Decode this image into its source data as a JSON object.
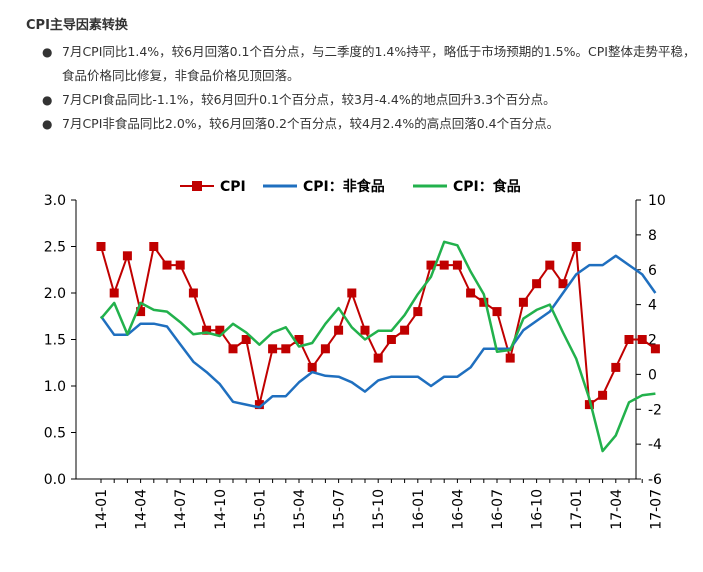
{
  "section_title": "CPI主导因素转换",
  "bullets": [
    "7月CPI同比1.4%，较6月回落0.1个百分点，与二季度的1.4%持平，略低于市场预期的1.5%。CPI整体走势平稳，食品价格同比修复，非食品价格见顶回落。",
    "7月CPI食品同比-1.1%，较6月回升0.1个百分点，较3月-4.4%的地点回升3.3个百分点。",
    "7月CPI非食品同比2.0%，较6月回落0.2个百分点，较4月2.4%的高点回落0.4个百分点。"
  ],
  "chart_data": {
    "type": "line",
    "x": [
      "14-01",
      "14-02",
      "14-03",
      "14-04",
      "14-05",
      "14-06",
      "14-07",
      "14-08",
      "14-09",
      "14-10",
      "14-11",
      "14-12",
      "15-01",
      "15-02",
      "15-03",
      "15-04",
      "15-05",
      "15-06",
      "15-07",
      "15-08",
      "15-09",
      "15-10",
      "15-11",
      "15-12",
      "16-01",
      "16-02",
      "16-03",
      "16-04",
      "16-05",
      "16-06",
      "16-07",
      "16-08",
      "16-09",
      "16-10",
      "16-11",
      "16-12",
      "17-01",
      "17-02",
      "17-03",
      "17-04",
      "17-05",
      "17-06",
      "17-07"
    ],
    "x_tick_labels": [
      "14-01",
      "14-04",
      "14-07",
      "14-10",
      "15-01",
      "15-04",
      "15-07",
      "15-10",
      "16-01",
      "16-04",
      "16-07",
      "16-10",
      "17-01",
      "17-04",
      "17-07"
    ],
    "left_axis": {
      "ylim": [
        0.0,
        3.0
      ],
      "ticks": [
        "0.0",
        "0.5",
        "1.0",
        "1.5",
        "2.0",
        "2.5",
        "3.0"
      ]
    },
    "right_axis": {
      "ylim": [
        -6,
        10
      ],
      "ticks": [
        "-6",
        "-4",
        "-2",
        "0",
        "2",
        "4",
        "6",
        "8",
        "10"
      ]
    },
    "legend_position": "top",
    "series": [
      {
        "name": "CPI",
        "axis": "left",
        "color": "#c00000",
        "marker": "square",
        "values": [
          2.5,
          2.0,
          2.4,
          1.8,
          2.5,
          2.3,
          2.3,
          2.0,
          1.6,
          1.6,
          1.4,
          1.5,
          0.8,
          1.4,
          1.4,
          1.5,
          1.2,
          1.4,
          1.6,
          2.0,
          1.6,
          1.3,
          1.5,
          1.6,
          1.8,
          2.3,
          2.3,
          2.3,
          2.0,
          1.9,
          1.8,
          1.3,
          1.9,
          2.1,
          2.3,
          2.1,
          2.5,
          0.8,
          0.9,
          1.2,
          1.5,
          1.5,
          1.4
        ]
      },
      {
        "name": "CPI：非食品",
        "axis": "left",
        "color": "#1f6fbf",
        "marker": "none",
        "values": [
          1.75,
          1.55,
          1.55,
          1.67,
          1.67,
          1.64,
          1.45,
          1.26,
          1.15,
          1.02,
          0.83,
          0.8,
          0.77,
          0.89,
          0.89,
          1.04,
          1.15,
          1.11,
          1.1,
          1.04,
          0.94,
          1.06,
          1.1,
          1.1,
          1.1,
          1.0,
          1.1,
          1.1,
          1.2,
          1.4,
          1.4,
          1.4,
          1.6,
          1.7,
          1.8,
          2.0,
          2.2,
          2.3,
          2.3,
          2.4,
          2.3,
          2.2,
          2.0
        ]
      },
      {
        "name": "CPI：食品",
        "axis": "right",
        "color": "#22b14c",
        "marker": "none",
        "values": [
          3.2,
          4.1,
          2.3,
          4.1,
          3.7,
          3.6,
          3.0,
          2.3,
          2.4,
          2.2,
          2.9,
          2.4,
          1.7,
          2.4,
          2.7,
          1.6,
          1.8,
          2.9,
          3.8,
          2.7,
          2.0,
          2.5,
          2.5,
          3.4,
          4.6,
          5.6,
          7.6,
          7.4,
          5.9,
          4.6,
          1.3,
          1.4,
          3.2,
          3.7,
          4.0,
          2.4,
          0.9,
          -1.4,
          -4.4,
          -3.5,
          -1.6,
          -1.2,
          -1.1
        ]
      }
    ]
  }
}
